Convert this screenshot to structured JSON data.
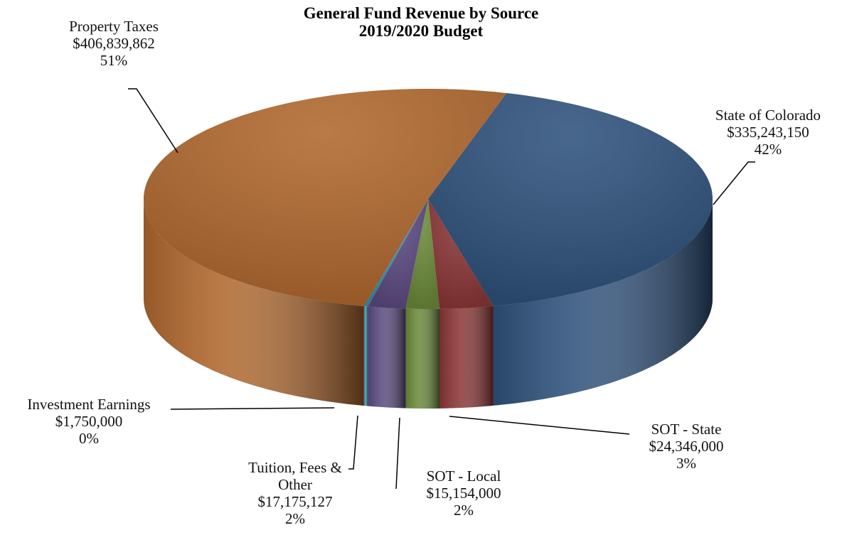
{
  "chart_data": {
    "type": "pie3d",
    "title": "General Fund Revenue by Source",
    "subtitle": "2019/2020 Budget",
    "categories": [
      "State of Colorado",
      "SOT - State",
      "SOT - Local",
      "Tuition, Fees & Other",
      "Investment Earnings",
      "Property Taxes"
    ],
    "values": [
      335243150,
      24346000,
      15154000,
      17175127,
      1750000,
      406839862
    ],
    "value_labels": [
      "$335,243,150",
      "$24,346,000",
      "$15,154,000",
      "$17,175,127",
      "$1,750,000",
      "$406,839,862"
    ],
    "percent_labels": [
      "42%",
      "3%",
      "2%",
      "2%",
      "0%",
      "51%"
    ],
    "colors": [
      "#2f527c",
      "#8b3636",
      "#6b8a3a",
      "#5b4a80",
      "#3a92a6",
      "#b0682e"
    ]
  }
}
